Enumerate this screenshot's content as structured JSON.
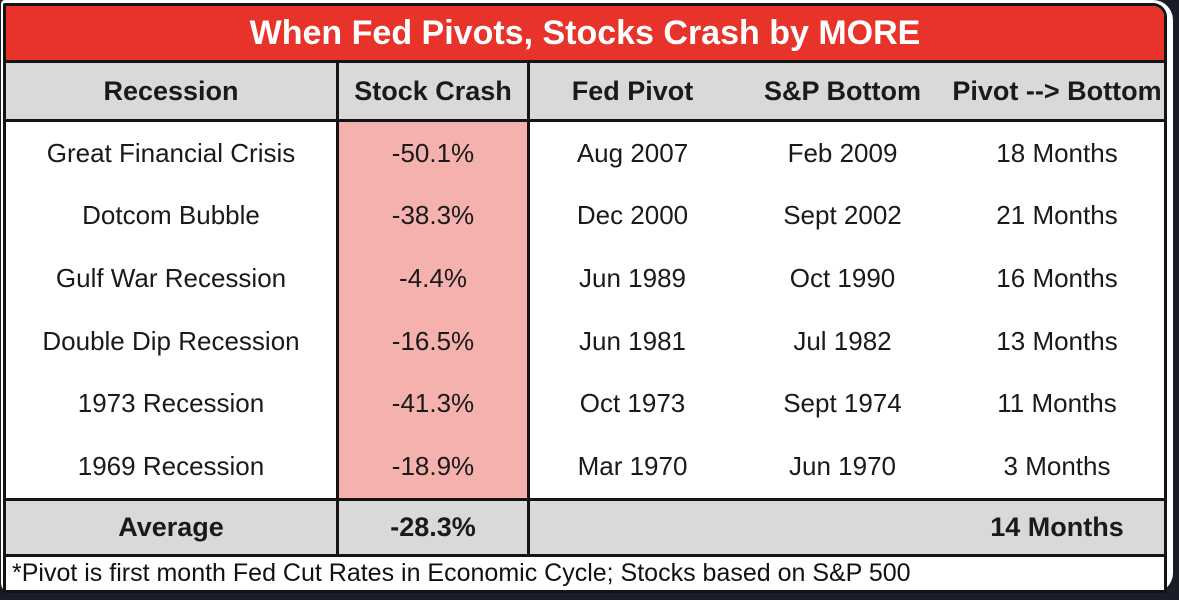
{
  "chart_data": {
    "type": "table",
    "title": "When Fed Pivots, Stocks Crash by MORE",
    "columns": [
      "Recession",
      "Stock Crash",
      "Fed Pivot",
      "S&P Bottom",
      "Pivot --> Bottom"
    ],
    "rows": [
      [
        "Great Financial Crisis",
        "-50.1%",
        "Aug 2007",
        "Feb 2009",
        "18 Months"
      ],
      [
        "Dotcom Bubble",
        "-38.3%",
        "Dec 2000",
        "Sept 2002",
        "21 Months"
      ],
      [
        "Gulf War Recession",
        "-4.4%",
        "Jun 1989",
        "Oct 1990",
        "16 Months"
      ],
      [
        "Double Dip Recession",
        "-16.5%",
        "Jun 1981",
        "Jul 1982",
        "13 Months"
      ],
      [
        "1973 Recession",
        "-41.3%",
        "Oct 1973",
        "Sept 1974",
        "11 Months"
      ],
      [
        "1969 Recession",
        "-18.9%",
        "Mar 1970",
        "Jun 1970",
        "3 Months"
      ]
    ],
    "average_row": [
      "Average",
      "-28.3%",
      "",
      "",
      "14 Months"
    ],
    "stock_crash_values_pct": [
      -50.1,
      -38.3,
      -4.4,
      -16.5,
      -41.3,
      -18.9
    ],
    "pivot_to_bottom_months": [
      18,
      21,
      16,
      13,
      11,
      3
    ],
    "average_stock_crash_pct": -28.3,
    "average_pivot_to_bottom_months": 14,
    "footnote": "*Pivot is first month Fed Cut Rates in Economic Cycle; Stocks based on S&P 500"
  },
  "colors": {
    "title_bg": "#e8332a",
    "title_text": "#ffffff",
    "header_bg": "#d9d9d9",
    "highlight_pink": "#f4b1ad",
    "border_black": "#141414",
    "outer_bg": "#1a1c27"
  }
}
